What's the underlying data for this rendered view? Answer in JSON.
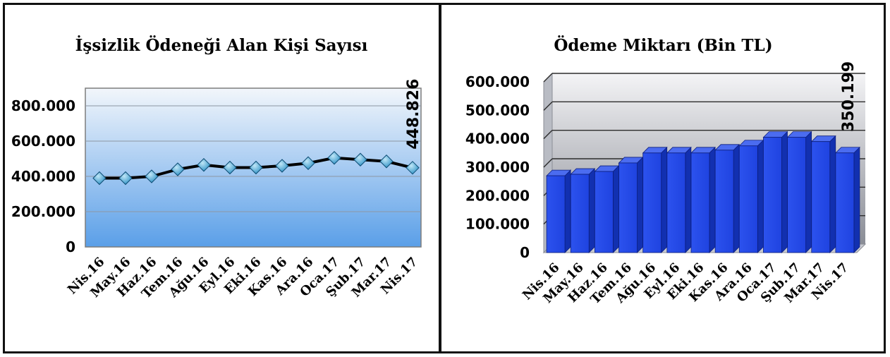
{
  "charts": [
    {
      "chart_data": {
        "type": "line",
        "title": "İşsizlik Ödeneği Alan Kişi Sayısı",
        "categories": [
          "Nis.16",
          "May.16",
          "Haz.16",
          "Tem.16",
          "Ağu.16",
          "Eyl.16",
          "Eki.16",
          "Kas.16",
          "Ara.16",
          "Oca.17",
          "Şub.17",
          "Mar.17",
          "Nis.17"
        ],
        "series": [
          {
            "values": [
              390000,
              390000,
              400000,
              440000,
              465000,
              450000,
              450000,
              460000,
              475000,
              505000,
              495000,
              485000,
              448826
            ]
          }
        ],
        "yticks": [
          "0",
          "200.000",
          "400.000",
          "600.000",
          "800.000"
        ],
        "ylim": [
          0,
          900000
        ],
        "grid": true,
        "data_labels": [
          {
            "index": 12,
            "text": "448.826"
          }
        ],
        "colors": {
          "line": "#000000",
          "marker": "#2a8fc4",
          "plot_top": "#f2f6fb",
          "plot_bottom": "#5a9fe8"
        }
      }
    },
    {
      "chart_data": {
        "type": "bar",
        "title": "Ödeme Miktarı (Bin TL)",
        "categories": [
          "Nis.16",
          "May.16",
          "Haz.16",
          "Tem.16",
          "Ağu.16",
          "Eyl.16",
          "Eki.16",
          "Kas.16",
          "Ara.16",
          "Oca.17",
          "Şub.17",
          "Mar.17",
          "Nis.17"
        ],
        "series": [
          {
            "values": [
              270000,
              275000,
              285000,
              315000,
              350000,
              350000,
              350000,
              360000,
              375000,
              405000,
              405000,
              390000,
              350199
            ]
          }
        ],
        "yticks": [
          "0",
          "100.000",
          "200.000",
          "300.000",
          "400.000",
          "500.000",
          "600.000"
        ],
        "ylim": [
          0,
          600000
        ],
        "grid": true,
        "data_labels": [
          {
            "index": 12,
            "text": "350.199"
          }
        ],
        "colors": {
          "bar": "#1f43e0",
          "bar_top": "#4b6cf0",
          "bar_side": "#1230b0",
          "wall_top": "#f4f4f6",
          "wall_bottom": "#8a8d96"
        }
      }
    }
  ]
}
